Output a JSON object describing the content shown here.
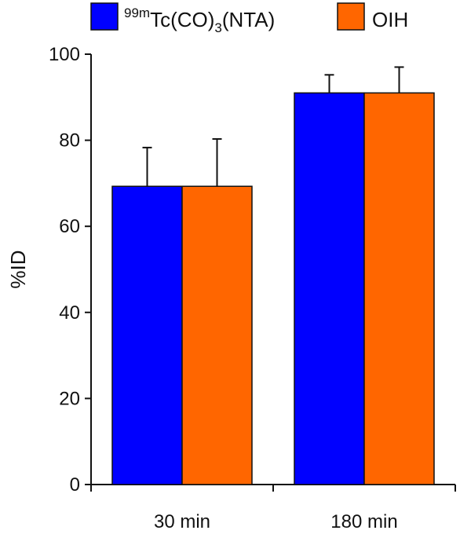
{
  "chart_data": {
    "type": "bar",
    "categories": [
      "30 min",
      "180 min"
    ],
    "series": [
      {
        "name_parts": {
          "sup": "99m",
          "main": "Tc(CO)",
          "sub": "3",
          "tail": "(NTA)"
        },
        "color": "#0000FF",
        "values": [
          69.3,
          91.0
        ],
        "errors": [
          9.0,
          4.2
        ]
      },
      {
        "name_parts": {
          "main": "OIH"
        },
        "color": "#FF6600",
        "values": [
          69.3,
          91.0
        ],
        "errors": [
          11.0,
          6.0
        ]
      }
    ],
    "ylabel": "%ID",
    "xlabel": "",
    "ylim": [
      0,
      100
    ],
    "yticks": [
      "0",
      "20",
      "40",
      "60",
      "80",
      "100"
    ],
    "grid": false,
    "legend_position": "top"
  }
}
